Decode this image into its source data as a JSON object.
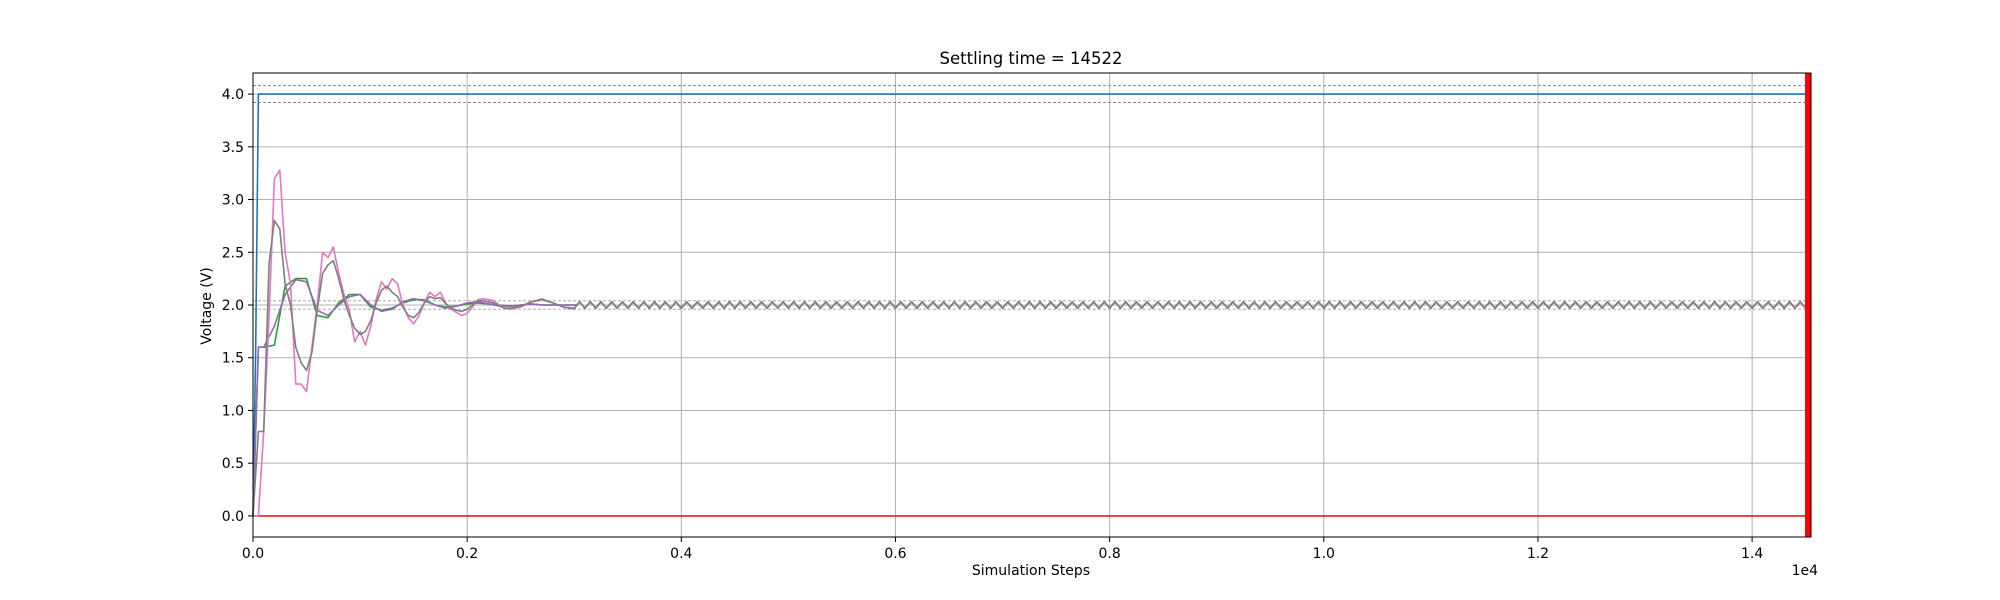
{
  "chart_data": {
    "type": "line",
    "title": "Settling time = 14522",
    "xlabel": "Simulation Steps",
    "ylabel": "Voltage (V)",
    "x_offset_text": "1e4",
    "xlim": [
      0,
      14550
    ],
    "ylim": [
      -0.2,
      4.2
    ],
    "grid": true,
    "x_ticks": [
      0,
      2000,
      4000,
      6000,
      8000,
      10000,
      12000,
      14000
    ],
    "x_tick_labels": [
      "0.0",
      "0.2",
      "0.4",
      "0.6",
      "0.8",
      "1.0",
      "1.2",
      "1.4"
    ],
    "y_ticks": [
      0,
      0.5,
      1.0,
      1.5,
      2.0,
      2.5,
      3.0,
      3.5,
      4.0
    ],
    "y_tick_labels": [
      "0.0",
      "0.5",
      "1.0",
      "1.5",
      "2.0",
      "2.5",
      "3.0",
      "3.5",
      "4.0"
    ],
    "settling_time": 14522,
    "settling_marker_color": "#ff0000",
    "tolerance_bands": [
      {
        "center": 4.0,
        "lower": 3.92,
        "upper": 4.08,
        "color": "#888888"
      },
      {
        "center": 2.0,
        "lower": 1.96,
        "upper": 2.04,
        "color": "#aaaaaa"
      }
    ],
    "series": [
      {
        "color": "#1f77b4",
        "values": [
          [
            0,
            0
          ],
          [
            25,
            1.6
          ],
          [
            50,
            4.0
          ],
          [
            14550,
            4.0
          ]
        ]
      },
      {
        "color": "#d62728",
        "values": [
          [
            0,
            0
          ],
          [
            14550,
            0
          ]
        ]
      },
      {
        "color": "#2ca02c",
        "x": [
          0,
          50,
          100,
          200,
          300,
          400,
          500,
          600,
          700,
          800,
          900,
          1000,
          1100,
          1200,
          1300,
          1400,
          1500,
          1600,
          1700,
          1800,
          1900,
          2000,
          2100,
          2200,
          2300,
          2400,
          2500,
          2600,
          2700,
          2800,
          2900,
          3000
        ],
        "y": [
          0,
          1.6,
          1.6,
          1.62,
          2.18,
          2.25,
          2.25,
          1.9,
          1.88,
          2.02,
          2.1,
          2.1,
          1.98,
          1.95,
          1.97,
          2.02,
          2.05,
          2.05,
          2.0,
          1.98,
          1.99,
          2.01,
          2.02,
          2.01,
          2.0,
          1.99,
          2.0,
          2.01,
          2.0,
          2.0,
          2.0,
          2.0
        ]
      },
      {
        "color": "#9467bd",
        "x": [
          0,
          50,
          100,
          200,
          300,
          400,
          500,
          600,
          700,
          800,
          900,
          1000,
          1100,
          1200,
          1300,
          1400,
          1500,
          1600,
          1700,
          1800,
          1900,
          2000,
          2100,
          2200,
          2300,
          2400,
          2500,
          2600,
          2700,
          2800,
          2900,
          3000
        ],
        "y": [
          0,
          1.6,
          1.6,
          1.8,
          2.1,
          2.24,
          2.22,
          1.95,
          1.9,
          2.0,
          2.08,
          2.1,
          2.0,
          1.94,
          1.96,
          2.03,
          2.06,
          2.04,
          2.0,
          1.97,
          1.99,
          2.02,
          2.03,
          2.01,
          1.99,
          1.99,
          2.0,
          2.01,
          2.0,
          2.0,
          2.0,
          2.0
        ]
      },
      {
        "color": "#e377c2",
        "x": [
          0,
          50,
          100,
          150,
          200,
          250,
          300,
          350,
          400,
          450,
          500,
          550,
          600,
          650,
          700,
          750,
          800,
          850,
          900,
          950,
          1000,
          1050,
          1100,
          1150,
          1200,
          1250,
          1300,
          1350,
          1400,
          1450,
          1500,
          1550,
          1600,
          1650,
          1700,
          1750,
          1800,
          1850,
          1900,
          1950,
          2000,
          2050,
          2100,
          2150,
          2200,
          2250,
          2300,
          2350,
          2400,
          2450,
          2500,
          2600,
          2700,
          2800,
          2900,
          3000
        ],
        "y": [
          0,
          0,
          0.8,
          1.9,
          3.2,
          3.28,
          2.5,
          2.2,
          1.25,
          1.25,
          1.18,
          1.6,
          2.0,
          2.5,
          2.45,
          2.55,
          2.3,
          2.1,
          1.95,
          1.65,
          1.75,
          1.62,
          1.8,
          2.05,
          2.22,
          2.15,
          2.25,
          2.2,
          2.0,
          1.88,
          1.82,
          1.9,
          2.02,
          2.12,
          2.08,
          2.12,
          2.02,
          1.96,
          1.93,
          1.9,
          1.92,
          1.98,
          2.05,
          2.06,
          2.05,
          2.04,
          2.0,
          1.97,
          1.96,
          1.97,
          1.98,
          2.03,
          2.06,
          2.02,
          1.98,
          1.96
        ]
      },
      {
        "color": "#7f7f7f",
        "x": [
          0,
          50,
          100,
          150,
          200,
          250,
          300,
          350,
          400,
          450,
          500,
          550,
          600,
          650,
          700,
          750,
          800,
          850,
          900,
          950,
          1000,
          1050,
          1100,
          1150,
          1200,
          1250,
          1300,
          1350,
          1400,
          1450,
          1500,
          1550,
          1600,
          1650,
          1700,
          1750,
          1800,
          1850,
          1900,
          1950,
          2000,
          2050,
          2100,
          2150,
          2200,
          2250,
          2300,
          2350,
          2400,
          2450,
          2500,
          2600,
          2700,
          2800,
          2900,
          3000
        ],
        "y": [
          0,
          0.8,
          0.8,
          2.4,
          2.8,
          2.72,
          2.2,
          2.0,
          1.6,
          1.45,
          1.38,
          1.55,
          1.95,
          2.3,
          2.38,
          2.42,
          2.25,
          2.05,
          1.9,
          1.78,
          1.72,
          1.75,
          1.85,
          2.02,
          2.14,
          2.18,
          2.12,
          2.08,
          1.98,
          1.9,
          1.88,
          1.93,
          2.02,
          2.08,
          2.06,
          2.07,
          2.01,
          1.97,
          1.95,
          1.94,
          1.96,
          2.0,
          2.04,
          2.04,
          2.03,
          2.02,
          1.99,
          1.97,
          1.97,
          1.98,
          1.99,
          2.03,
          2.05,
          2.02,
          1.98,
          1.97
        ]
      }
    ]
  }
}
